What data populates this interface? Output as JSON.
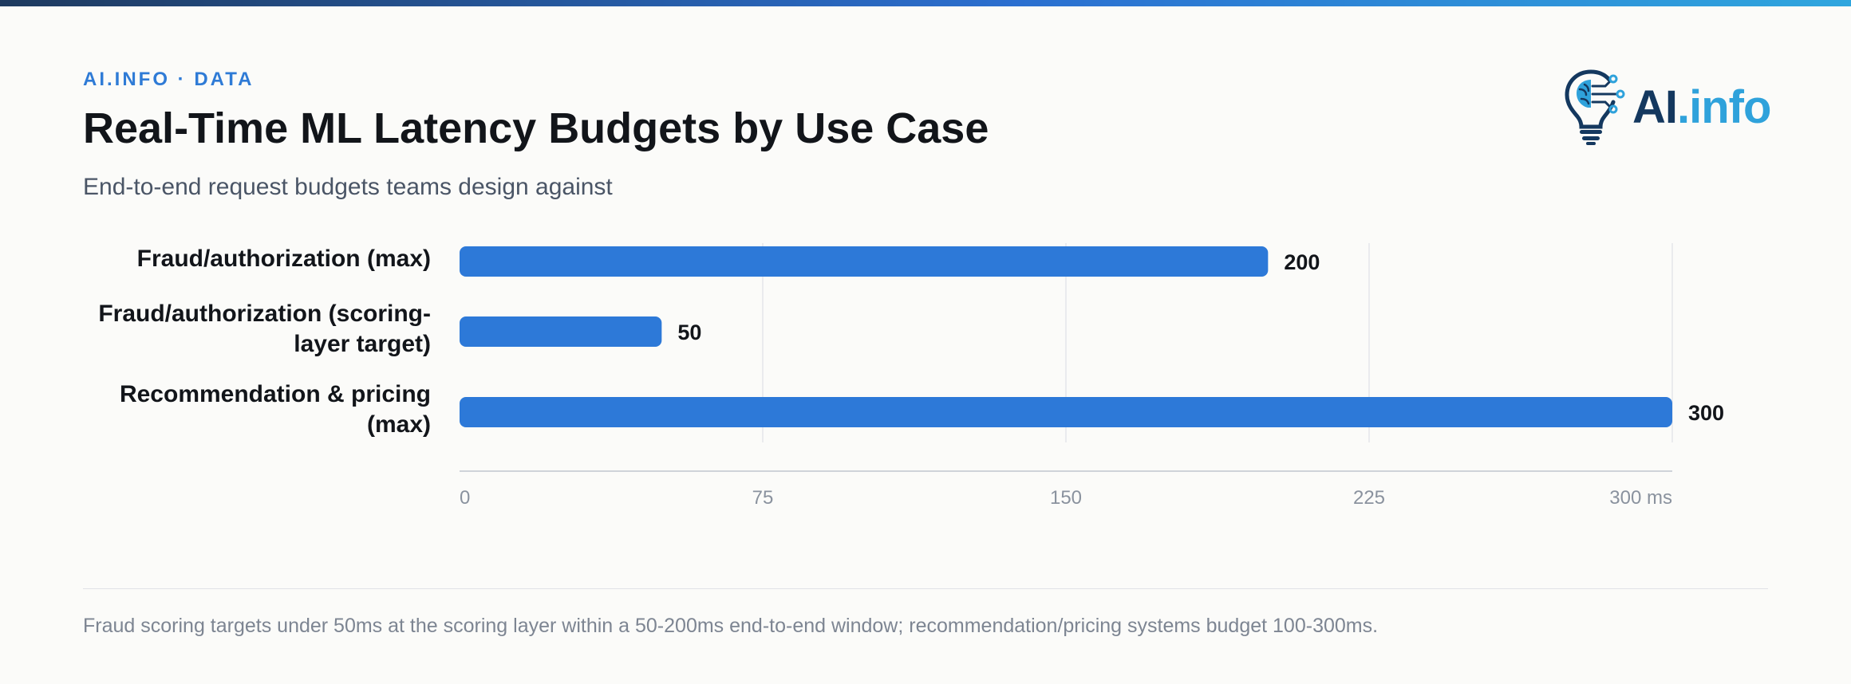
{
  "header": {
    "eyebrow": "AI.INFO · DATA",
    "title": "Real-Time ML Latency Budgets by Use Case",
    "subtitle": "End-to-end request budgets teams design against"
  },
  "logo": {
    "text_primary": "AI",
    "text_secondary": ".info",
    "icon": "lightbulb-brain-circuit-icon"
  },
  "chart_data": {
    "type": "bar",
    "orientation": "horizontal",
    "categories": [
      [
        "Fraud/authorization (max)"
      ],
      [
        "Fraud/authorization (scoring-",
        "layer target)"
      ],
      [
        "Recommendation & pricing",
        "(max)"
      ]
    ],
    "values": [
      200,
      50,
      300
    ],
    "value_labels": [
      "200",
      "50",
      "300"
    ],
    "xlim": [
      0,
      300
    ],
    "ticks": [
      0,
      75,
      150,
      225,
      300
    ],
    "tick_labels": [
      "0",
      "75",
      "150",
      "225",
      "300 ms"
    ],
    "grid": true,
    "bar_color": "#2d79d8",
    "grid_color": "#e4e6ea"
  },
  "footer": {
    "note": "Fraud scoring targets under 50ms at the scoring layer within a 50-200ms end-to-end window; recommendation/pricing systems budget 100-300ms."
  }
}
